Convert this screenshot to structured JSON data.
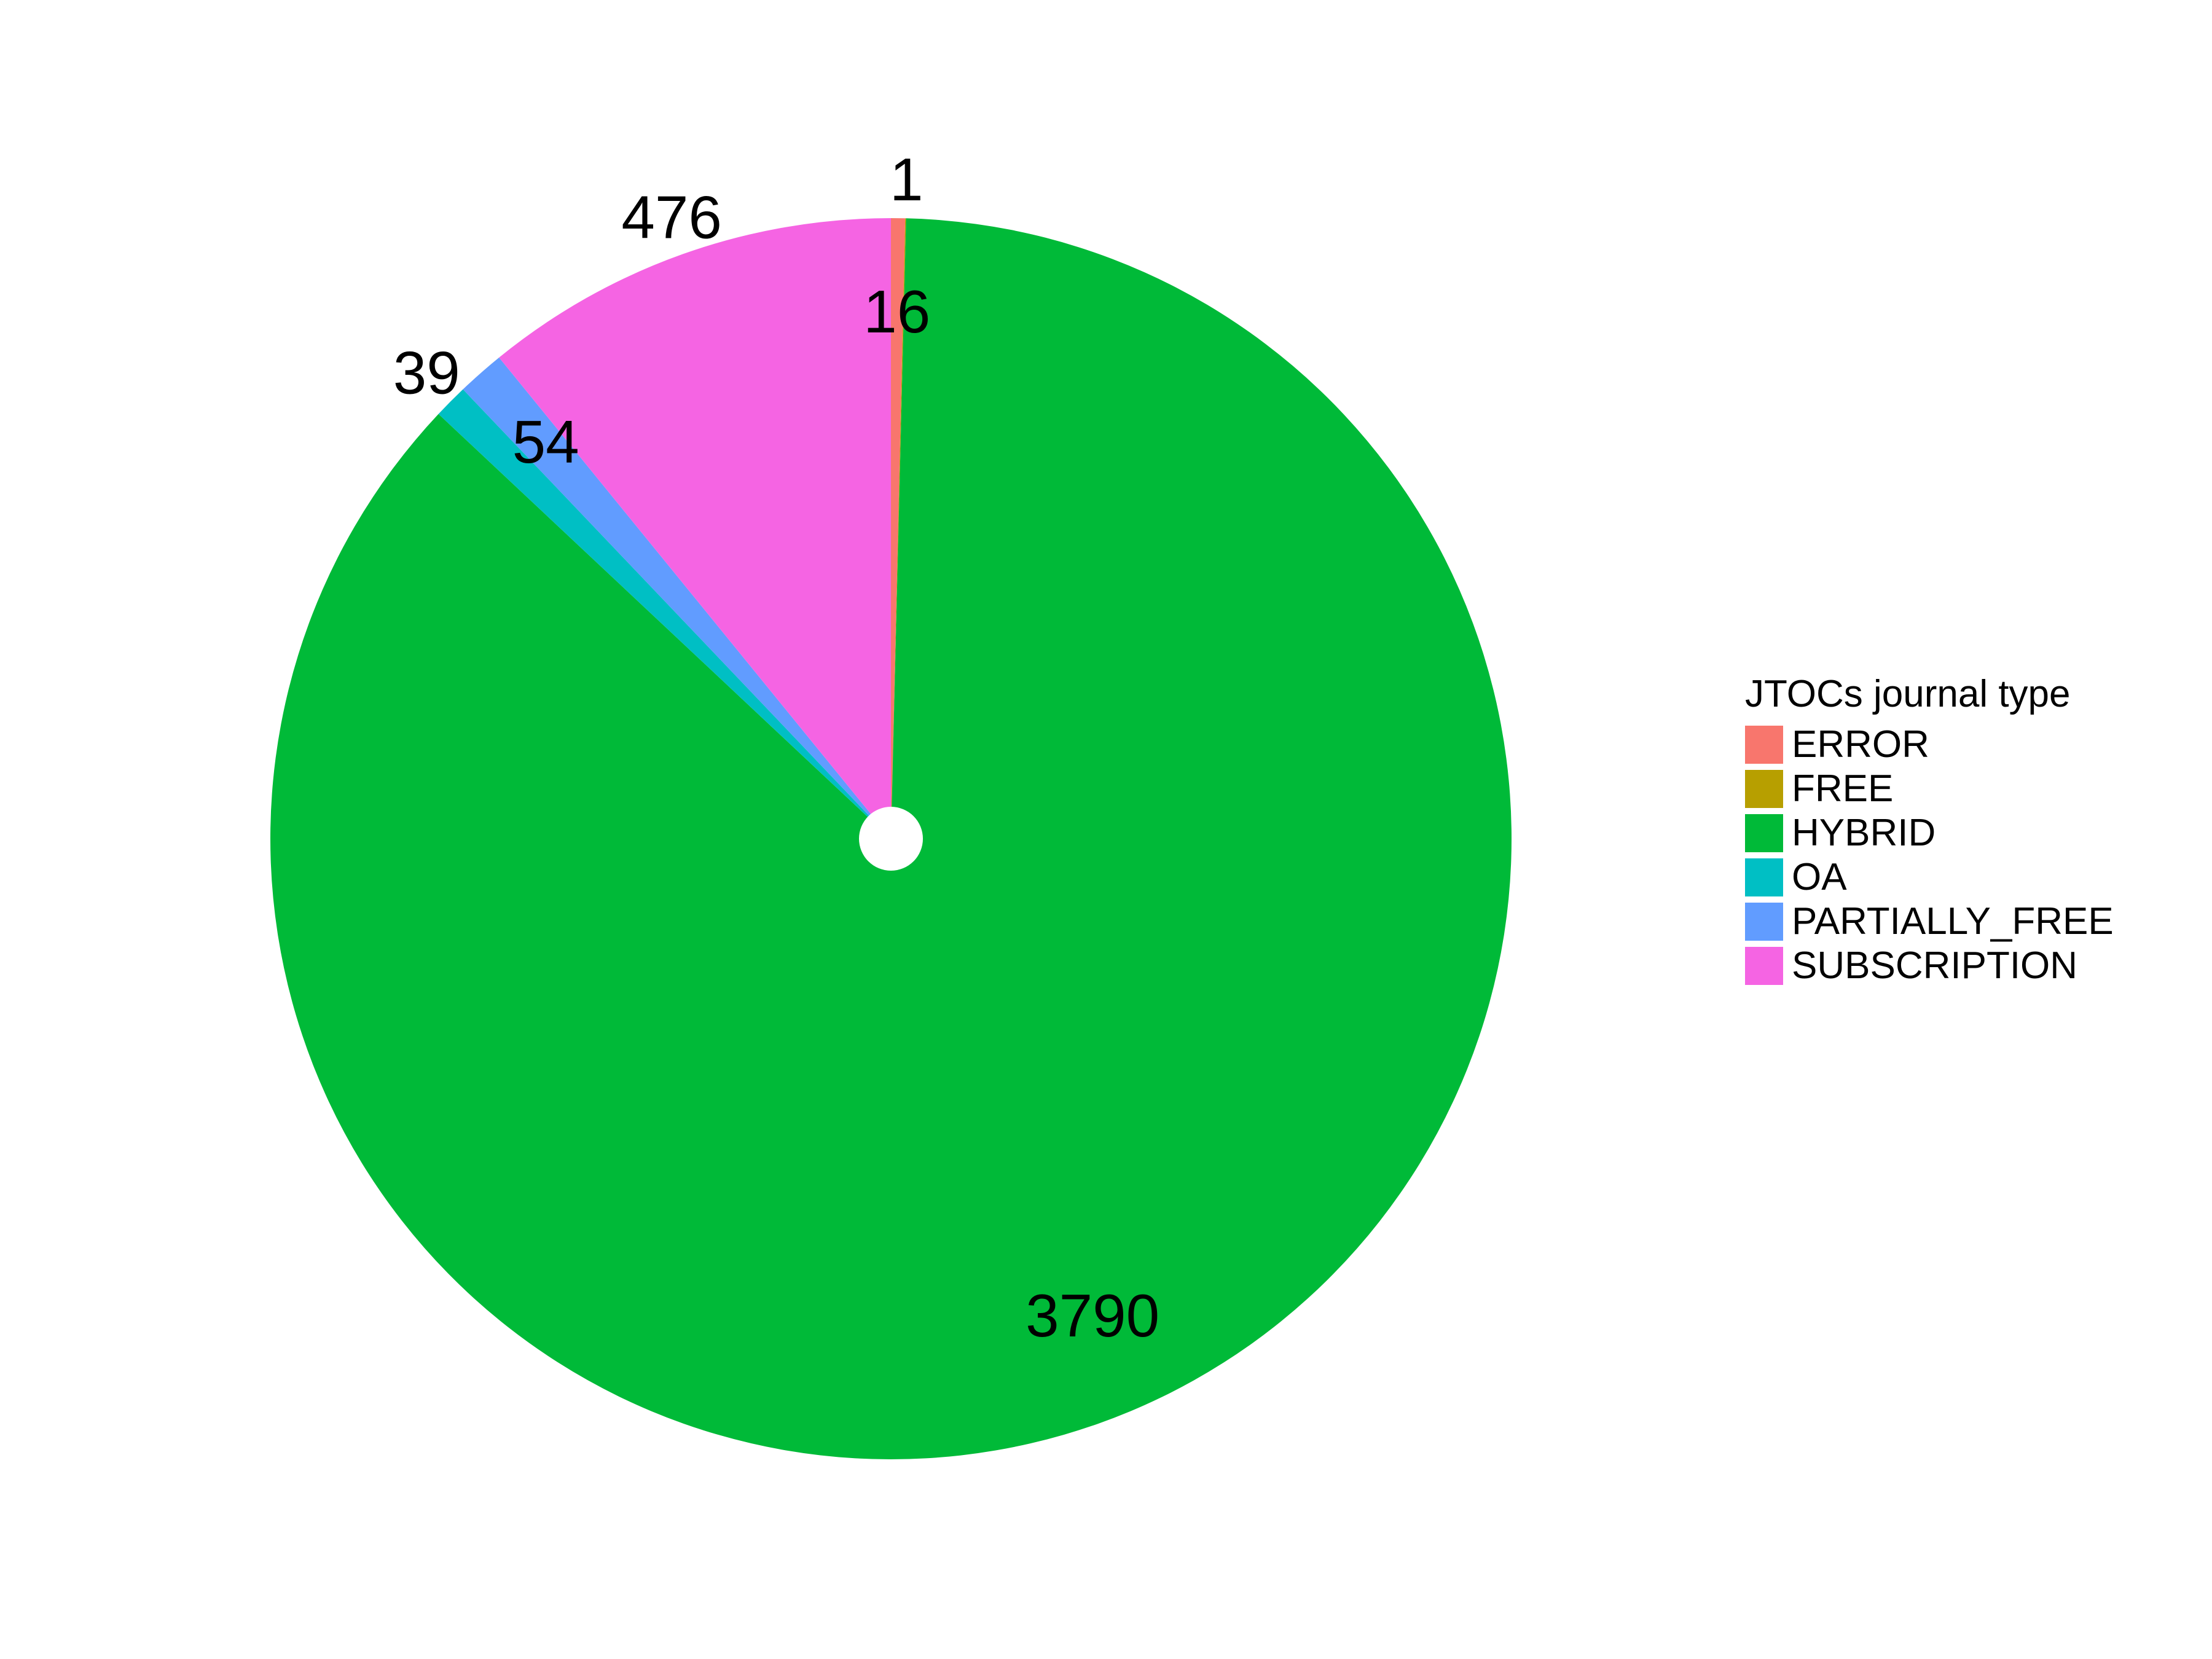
{
  "chart_data": {
    "type": "pie",
    "title": "",
    "legend_title": "JTOCs journal type",
    "legend_position": "right",
    "slices": [
      {
        "label": "ERROR",
        "value": 16,
        "color": "#F8766D"
      },
      {
        "label": "FREE",
        "value": 1,
        "color": "#B79F00"
      },
      {
        "label": "HYBRID",
        "value": 3790,
        "color": "#00BA38"
      },
      {
        "label": "OA",
        "value": 39,
        "color": "#00BFC4"
      },
      {
        "label": "PARTIALLY_FREE",
        "value": 54,
        "color": "#619CFF"
      },
      {
        "label": "SUBSCRIPTION",
        "value": 476,
        "color": "#F564E3"
      }
    ],
    "data_labels": [
      "16",
      "1",
      "3790",
      "39",
      "54",
      "476"
    ]
  }
}
